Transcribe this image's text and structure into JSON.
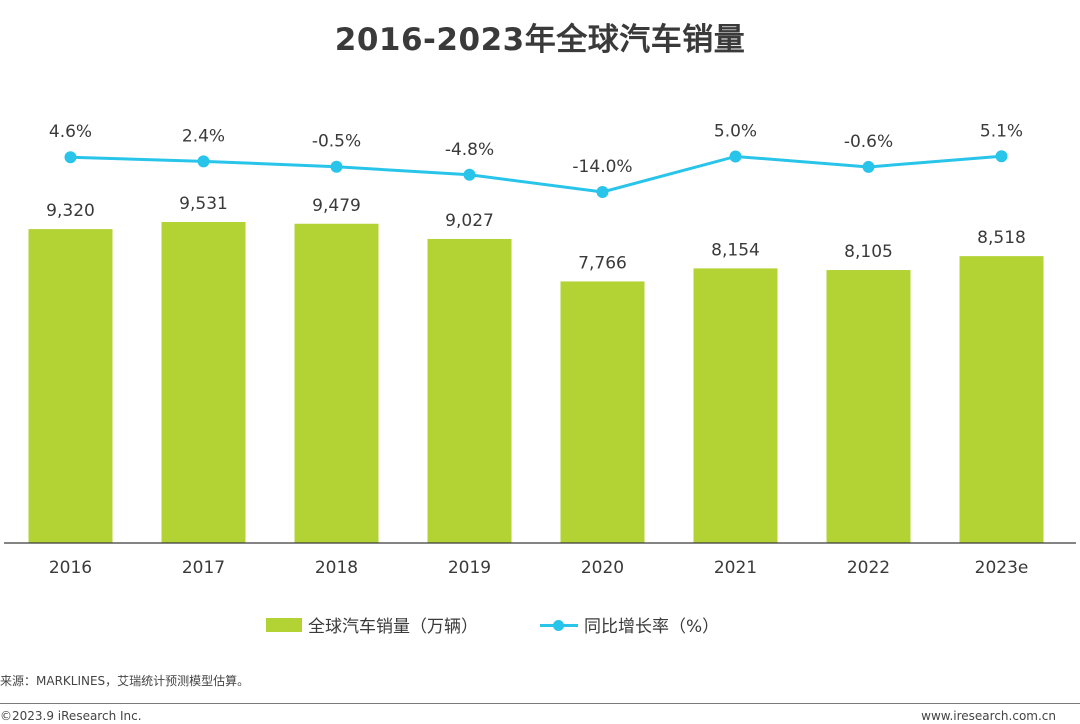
{
  "title": "2016-2023年全球汽车销量",
  "chart_data": {
    "type": "bar",
    "categories": [
      "2016",
      "2017",
      "2018",
      "2019",
      "2020",
      "2021",
      "2022",
      "2023e"
    ],
    "series": [
      {
        "name": "全球汽车销量（万辆）",
        "type": "bar",
        "values": [
          9320,
          9531,
          9479,
          9027,
          7766,
          8154,
          8105,
          8518
        ],
        "labels": [
          "9,320",
          "9,531",
          "9,479",
          "9,027",
          "7,766",
          "8,154",
          "8,105",
          "8,518"
        ],
        "color": "#b3d335"
      },
      {
        "name": "同比增长率（%）",
        "type": "line",
        "values": [
          4.6,
          2.4,
          -0.5,
          -4.8,
          -14.0,
          5.0,
          -0.6,
          5.1
        ],
        "labels": [
          "4.6%",
          "2.4%",
          "-0.5%",
          "-4.8%",
          "-14.0%",
          "5.0%",
          "-0.6%",
          "5.1%"
        ],
        "color": "#29c4ea"
      }
    ],
    "legend_position": "bottom",
    "grid": false
  },
  "source": "来源：MARKLINES，艾瑞统计预测模型估算。",
  "copyright": "©2023.9 iResearch Inc.",
  "website": "www.iresearch.com.cn"
}
